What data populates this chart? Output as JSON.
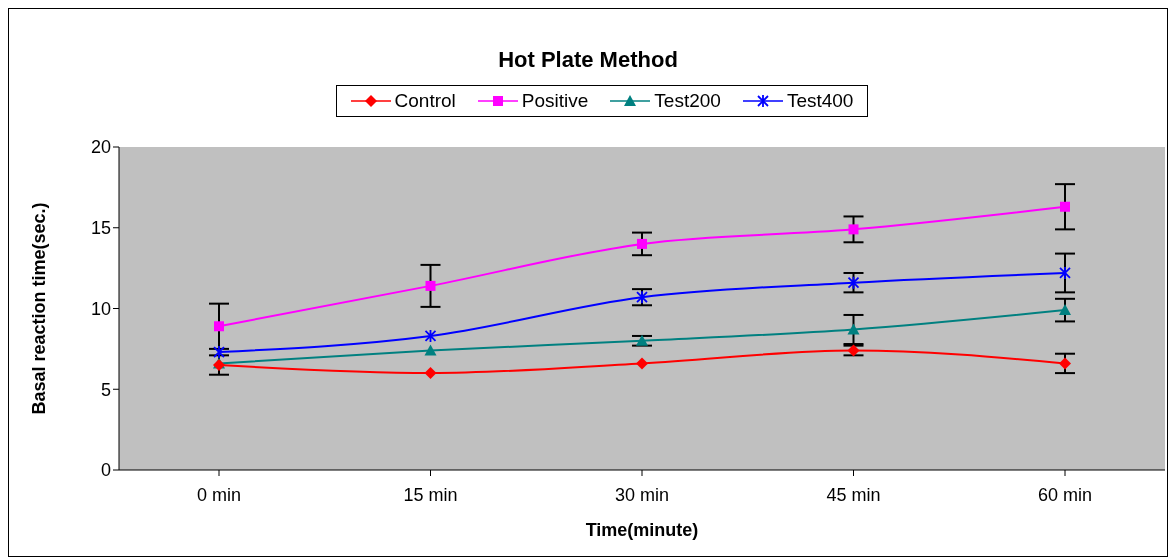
{
  "chart_data": {
    "type": "line",
    "title": "Hot Plate Method",
    "xlabel": "Time(minute)",
    "ylabel": "Basal reaction time(sec.)",
    "categories": [
      "0 min",
      "15 min",
      "30 min",
      "45 min",
      "60 min"
    ],
    "series": [
      {
        "name": "Control",
        "color": "#ff0000",
        "marker": "diamond",
        "values": [
          6.5,
          6.0,
          6.6,
          7.4,
          6.6
        ],
        "errors": [
          0.6,
          null,
          null,
          0.3,
          0.6
        ]
      },
      {
        "name": "Positive",
        "color": "#ff00ff",
        "marker": "square",
        "values": [
          8.9,
          11.4,
          14.0,
          14.9,
          16.3
        ],
        "errors": [
          1.4,
          1.3,
          0.7,
          0.8,
          1.4
        ]
      },
      {
        "name": "Test200",
        "color": "#008080",
        "marker": "triangle",
        "values": [
          6.6,
          7.4,
          8.0,
          8.7,
          9.9
        ],
        "errors": [
          null,
          null,
          0.3,
          0.9,
          0.7
        ]
      },
      {
        "name": "Test400",
        "color": "#0000ff",
        "marker": "cross",
        "values": [
          7.3,
          8.3,
          10.7,
          11.6,
          12.2
        ],
        "errors": [
          null,
          null,
          0.5,
          0.6,
          1.2
        ]
      }
    ],
    "ylim": [
      0,
      20
    ],
    "yticks": [
      0,
      5,
      10,
      15,
      20
    ],
    "grid": false,
    "legend": "top"
  }
}
